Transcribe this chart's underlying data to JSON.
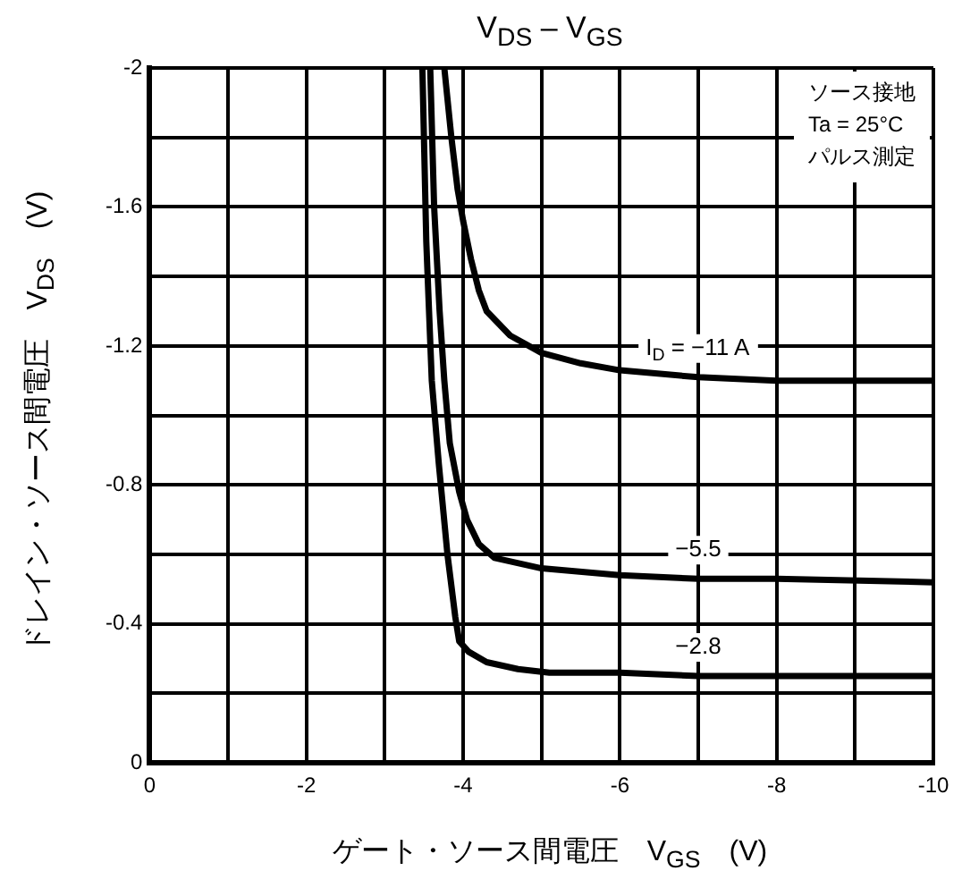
{
  "chart_data": {
    "type": "line",
    "title": "V$_{DS}$ – V$_{GS}$",
    "xlabel": "ゲート・ソース間電圧　V$_{GS}$　(V)",
    "ylabel": "ドレイン・ソース間電圧　V$_{DS}$　(V)",
    "annotations": [
      "ソース接地",
      "Ta = 25°C",
      "パルス測定"
    ],
    "xlim": [
      0,
      -10
    ],
    "ylim": [
      0,
      -2
    ],
    "xticks": [
      0,
      {
        "value": -1,
        "label": null
      },
      -2,
      {
        "value": -3,
        "label": null
      },
      -4,
      {
        "value": -5,
        "label": null
      },
      -6,
      {
        "value": -7,
        "label": null
      },
      -8,
      {
        "value": -9,
        "label": null
      },
      -10
    ],
    "yticks": [
      0,
      {
        "value": -0.2,
        "label": null
      },
      -0.4,
      {
        "value": -0.6,
        "label": null
      },
      -0.8,
      {
        "value": -1,
        "label": null
      },
      -1.2,
      {
        "value": -1.4,
        "label": null
      },
      -1.6,
      {
        "value": -1.8,
        "label": null
      },
      -2
    ],
    "grid": true,
    "legend": false,
    "series": [
      {
        "name": "I$_{D}$ = −11 A",
        "color": "#000000",
        "x": [
          -3.76,
          -3.85,
          -3.93,
          -4.0,
          -4.1,
          -4.2,
          -4.3,
          -4.6,
          -5,
          -5.5,
          -6,
          -7,
          -8,
          -9,
          -10
        ],
        "values": [
          -2,
          -1.8,
          -1.65,
          -1.56,
          -1.45,
          -1.36,
          -1.3,
          -1.23,
          -1.18,
          -1.15,
          -1.13,
          -1.11,
          -1.1,
          -1.1,
          -1.1
        ]
      },
      {
        "name": "−5.5",
        "color": "#000000",
        "x": [
          -3.58,
          -3.63,
          -3.7,
          -3.76,
          -3.83,
          -3.95,
          -4.05,
          -4.2,
          -4.4,
          -5,
          -6,
          -7,
          -8,
          -10
        ],
        "values": [
          -2,
          -1.6,
          -1.3,
          -1.1,
          -0.92,
          -0.78,
          -0.7,
          -0.63,
          -0.59,
          -0.56,
          -0.54,
          -0.53,
          -0.53,
          -0.52
        ]
      },
      {
        "name": "−2.8",
        "color": "#000000",
        "x": [
          -3.48,
          -3.53,
          -3.6,
          -3.69,
          -3.8,
          -3.9,
          -3.95,
          -4.07,
          -4.3,
          -4.7,
          -5.1,
          -6,
          -7,
          -8,
          -10
        ],
        "values": [
          -2,
          -1.5,
          -1.1,
          -0.86,
          -0.6,
          -0.42,
          -0.35,
          -0.32,
          -0.29,
          -0.27,
          -0.26,
          -0.26,
          -0.25,
          -0.25,
          -0.25
        ]
      }
    ]
  }
}
